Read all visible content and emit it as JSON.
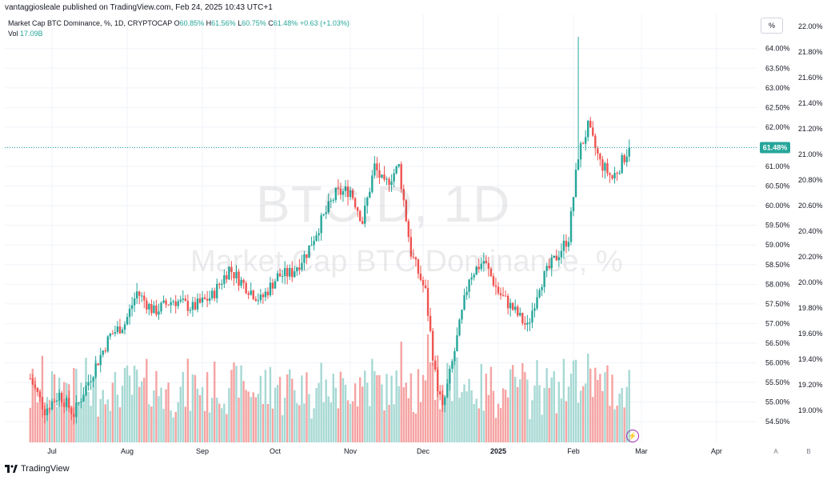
{
  "header": {
    "publisher_line": "vantaggiosleale published on TradingView.com, Feb 24, 2025 10:43 UTC+1",
    "symbol": "Market Cap BTC Dominance, %, 1D, CRYPTOCAP",
    "ohlc_open_label": "O",
    "ohlc_open": "60.85%",
    "ohlc_high_label": "H",
    "ohlc_high": "61.56%",
    "ohlc_low_label": "L",
    "ohlc_low": "60.75%",
    "ohlc_close_label": "C",
    "ohlc_close": "61.48%",
    "change": "+0.63 (+1.03%)",
    "vol_label": "Vol",
    "vol_value": "17.09B"
  },
  "watermark": {
    "main": "BTC.D, 1D",
    "sub": "Market Cap BTC Dominance, %"
  },
  "scale_button": "%",
  "brand": "TradingView",
  "buttons": {
    "a": "A",
    "b": "B"
  },
  "colors": {
    "up": "#26a69a",
    "down": "#ef5350",
    "vol_up": "#a7d9d4",
    "vol_down": "#f5a3a2",
    "grid": "#f0f3fa"
  },
  "chart_data": {
    "type": "candlestick",
    "title": "Market Cap BTC Dominance, %, 1D, CRYPTOCAP",
    "x_tick_labels": [
      "Jul",
      "Aug",
      "Sep",
      "Oct",
      "Nov",
      "Dec",
      "2025",
      "Feb",
      "Mar",
      "Apr"
    ],
    "y_tick_labels": [
      "64.00%",
      "63.50%",
      "63.00%",
      "62.50%",
      "62.00%",
      "61.50%",
      "61.00%",
      "60.50%",
      "60.00%",
      "59.50%",
      "59.00%",
      "58.50%",
      "58.00%",
      "57.50%",
      "57.00%",
      "56.50%",
      "56.00%",
      "55.50%",
      "55.00%",
      "54.50%"
    ],
    "y_range": [
      54.3,
      64.3
    ],
    "y_axis_right_labels": [
      "22.00%",
      "21.80%",
      "21.60%",
      "21.40%",
      "21.20%",
      "21.00%",
      "20.80%",
      "20.60%",
      "20.40%",
      "20.20%",
      "20.00%",
      "19.80%",
      "19.60%",
      "19.40%",
      "19.20%",
      "19.00%"
    ],
    "y_right_range": [
      18.85,
      22.02
    ],
    "last_price_label": "61.48%",
    "last_price": 61.48,
    "anchors": [
      {
        "date": "2024-06-22",
        "price": 55.6
      },
      {
        "date": "2024-06-28",
        "price": 54.8
      },
      {
        "date": "2024-07-04",
        "price": 55.2
      },
      {
        "date": "2024-07-10",
        "price": 54.7
      },
      {
        "date": "2024-07-18",
        "price": 55.8
      },
      {
        "date": "2024-07-25",
        "price": 56.7
      },
      {
        "date": "2024-07-31",
        "price": 57.0
      },
      {
        "date": "2024-08-05",
        "price": 57.8
      },
      {
        "date": "2024-08-12",
        "price": 57.3
      },
      {
        "date": "2024-08-20",
        "price": 57.6
      },
      {
        "date": "2024-08-28",
        "price": 57.4
      },
      {
        "date": "2024-09-05",
        "price": 57.7
      },
      {
        "date": "2024-09-12",
        "price": 58.4
      },
      {
        "date": "2024-09-18",
        "price": 58.0
      },
      {
        "date": "2024-09-25",
        "price": 57.6
      },
      {
        "date": "2024-10-02",
        "price": 58.2
      },
      {
        "date": "2024-10-08",
        "price": 58.3
      },
      {
        "date": "2024-10-14",
        "price": 58.8
      },
      {
        "date": "2024-10-20",
        "price": 59.6
      },
      {
        "date": "2024-10-26",
        "price": 60.3
      },
      {
        "date": "2024-11-01",
        "price": 60.4
      },
      {
        "date": "2024-11-06",
        "price": 59.6
      },
      {
        "date": "2024-11-11",
        "price": 61.0
      },
      {
        "date": "2024-11-15",
        "price": 60.5
      },
      {
        "date": "2024-11-21",
        "price": 61.0
      },
      {
        "date": "2024-11-26",
        "price": 58.8
      },
      {
        "date": "2024-12-02",
        "price": 57.8
      },
      {
        "date": "2024-12-06",
        "price": 55.7
      },
      {
        "date": "2024-12-09",
        "price": 54.8
      },
      {
        "date": "2024-12-14",
        "price": 56.3
      },
      {
        "date": "2024-12-20",
        "price": 58.2
      },
      {
        "date": "2024-12-26",
        "price": 58.6
      },
      {
        "date": "2025-01-01",
        "price": 57.8
      },
      {
        "date": "2025-01-08",
        "price": 57.3
      },
      {
        "date": "2025-01-13",
        "price": 56.9
      },
      {
        "date": "2025-01-18",
        "price": 58.0
      },
      {
        "date": "2025-01-24",
        "price": 58.6
      },
      {
        "date": "2025-01-30",
        "price": 59.2
      },
      {
        "date": "2025-02-03",
        "price": 61.3
      },
      {
        "date": "2025-02-07",
        "price": 62.0
      },
      {
        "date": "2025-02-12",
        "price": 61.1
      },
      {
        "date": "2025-02-17",
        "price": 60.7
      },
      {
        "date": "2025-02-20",
        "price": 61.0
      },
      {
        "date": "2025-02-24",
        "price": 61.48
      }
    ],
    "notable_wick_high": {
      "date": "2025-02-03",
      "price": 64.3
    }
  }
}
